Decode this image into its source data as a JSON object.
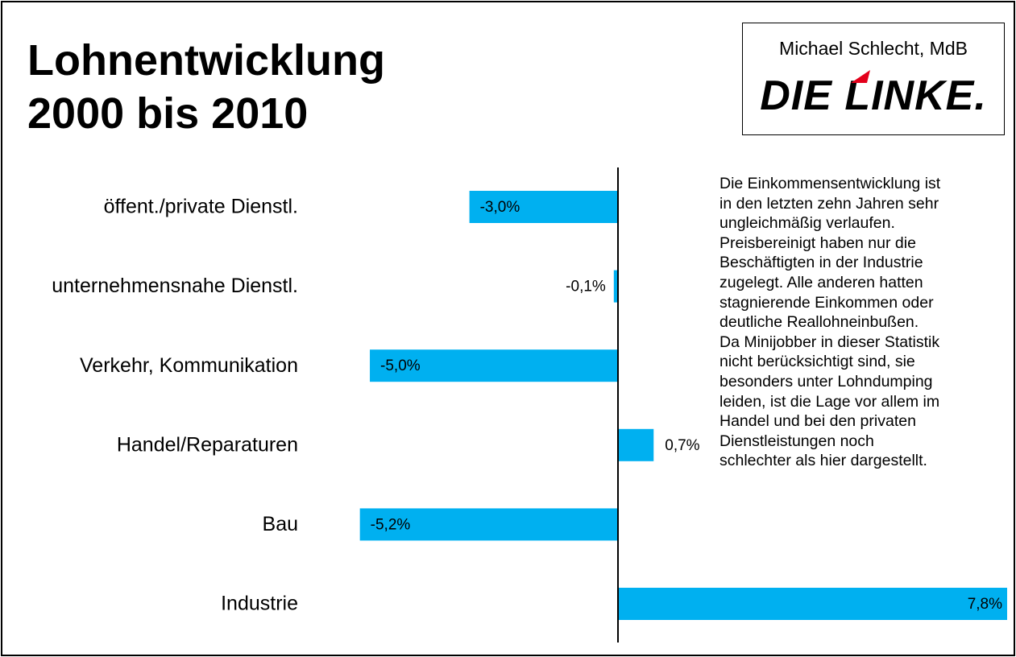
{
  "chart_data": {
    "type": "bar",
    "orientation": "horizontal",
    "title": "Lohnentwicklung 2000 bis 2010",
    "author": "Michael Schlecht, MdB",
    "party": "DIE LINKE.",
    "categories": [
      "öffent./private Dienstl.",
      "unternehmensnahe Dienstl.",
      "Verkehr, Kommunikation",
      "Handel/Reparaturen",
      "Bau",
      "Industrie"
    ],
    "values": [
      -3.0,
      -0.1,
      -5.0,
      0.7,
      -5.2,
      7.8
    ],
    "value_labels": [
      "-3,0%",
      "-0,1%",
      "-5,0%",
      "0,7%",
      "-5,2%",
      "7,8%"
    ],
    "color": "#00b0f0",
    "annotation_lines": [
      "Die Einkommensentwicklung ist",
      "in den letzten zehn Jahren sehr",
      "ungleichmäßig verlaufen.",
      "Preisbereinigt haben nur die",
      "Beschäftigten in der Industrie",
      "zugelegt. Alle anderen hatten",
      "stagnierende Einkommen oder",
      "deutliche Reallohneinbußen.",
      "Da Minijobber in dieser Statistik",
      "nicht berücksichtigt sind, sie",
      "besonders unter Lohndumping",
      "leiden, ist die Lage vor allem im",
      "Handel und bei den privaten",
      "Dienstleistungen noch",
      "schlechter als hier dargestellt."
    ]
  }
}
